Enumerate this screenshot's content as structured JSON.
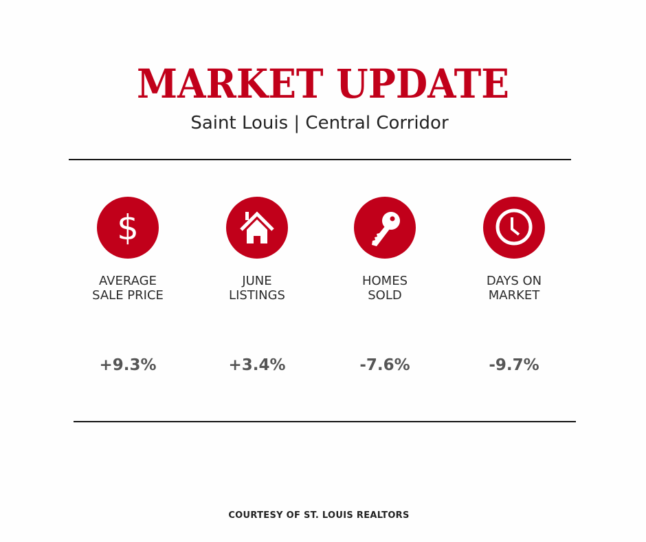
{
  "header": {
    "title": "MARKET UPDATE",
    "subtitle": "Saint Louis | Central Corridor"
  },
  "colors": {
    "accent": "#c1001a",
    "text": "#2a2a2a",
    "value": "#555555"
  },
  "stats": [
    {
      "icon": "dollar-icon",
      "label_line1": "AVERAGE",
      "label_line2": "SALE PRICE",
      "value": "+9.3%"
    },
    {
      "icon": "house-icon",
      "label_line1": "JUNE",
      "label_line2": "LISTINGS",
      "value": "+3.4%"
    },
    {
      "icon": "key-icon",
      "label_line1": "HOMES",
      "label_line2": "SOLD",
      "value": "-7.6%"
    },
    {
      "icon": "clock-icon",
      "label_line1": "DAYS ON",
      "label_line2": "MARKET",
      "value": "-9.7%"
    }
  ],
  "footer": {
    "text": "COURTESY OF ST. LOUIS REALTORS"
  }
}
